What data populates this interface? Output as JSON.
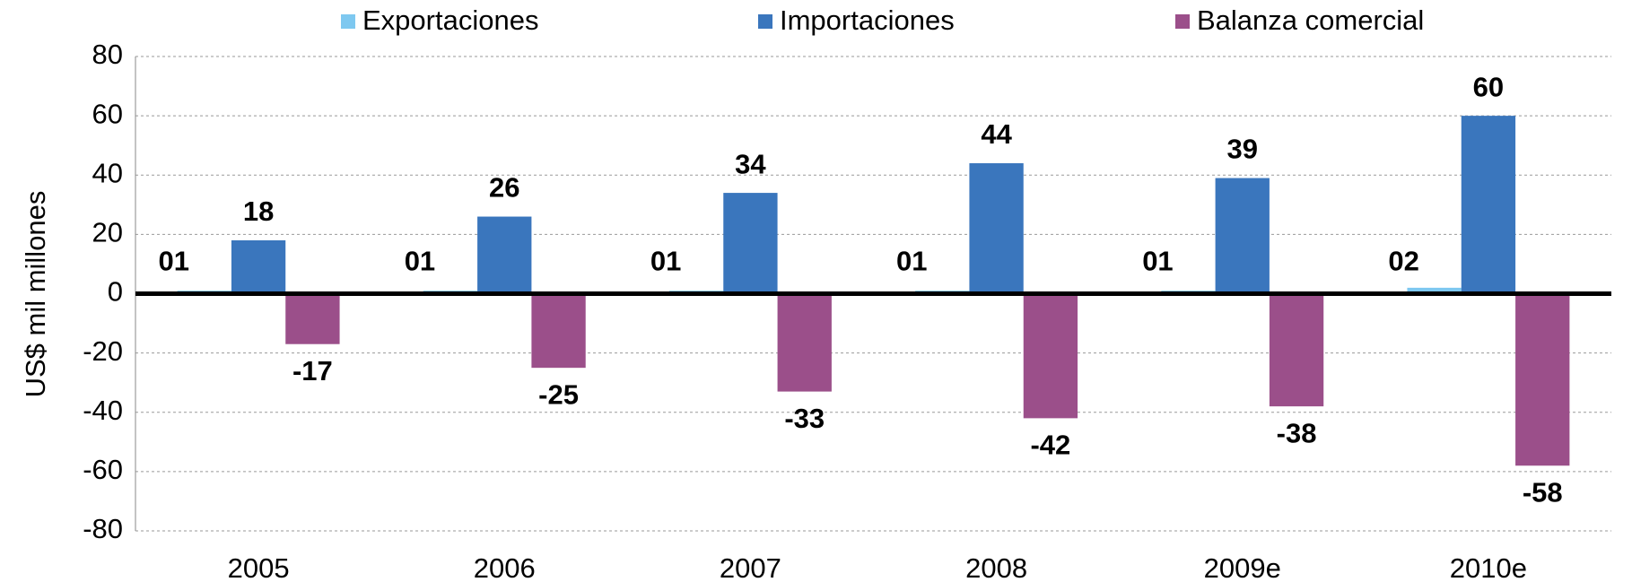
{
  "chart_data": {
    "type": "bar",
    "categories": [
      "2005",
      "2006",
      "2007",
      "2008",
      "2009e",
      "2010e"
    ],
    "y_label": "US$ mil millones",
    "series": [
      {
        "name": "Exportaciones",
        "color": "#7ec8f0",
        "values": [
          1,
          1,
          1,
          1,
          1,
          2
        ],
        "value_labels": [
          "01",
          "01",
          "01",
          "01",
          "01",
          "02"
        ]
      },
      {
        "name": "Importaciones",
        "color": "#3a76bd",
        "values": [
          18,
          26,
          34,
          44,
          39,
          60
        ]
      },
      {
        "name": "Balanza comercial",
        "color": "#9b4f8a",
        "values": [
          -17,
          -25,
          -33,
          -42,
          -38,
          -58
        ]
      }
    ],
    "ylim": [
      -80,
      80
    ],
    "yticks": [
      -80,
      -60,
      -40,
      -20,
      0,
      20,
      40,
      60,
      80
    ],
    "grid": true,
    "legend": "top"
  }
}
